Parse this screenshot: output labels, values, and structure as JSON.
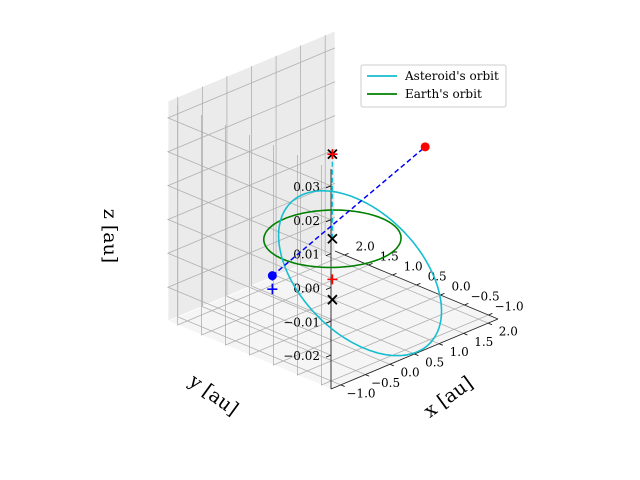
{
  "chart_data": {
    "type": "line",
    "projection": "3d",
    "grid": true,
    "legend_placement": "top-right",
    "xlabel": "x [au]",
    "ylabel": "y [au]",
    "zlabel": "z [au]",
    "xlim": [
      -1.2,
      2.2
    ],
    "ylim": [
      -1.2,
      2.2
    ],
    "zlim": [
      -0.03,
      0.035
    ],
    "xticks": [
      "−1.0",
      "−0.5",
      "0.0",
      "0.5",
      "1.0",
      "1.5",
      "2.0"
    ],
    "yticks": [
      "−1.0",
      "−0.5",
      "0.0",
      "0.5",
      "1.0",
      "1.5",
      "2.0"
    ],
    "zticks": [
      "−0.02",
      "−0.01",
      "0.00",
      "0.01",
      "0.02",
      "0.03"
    ],
    "series": [
      {
        "name": "Asteroid's orbit",
        "color": "#17becf",
        "style": "solid",
        "orbit": {
          "a": 1.25,
          "e": 0.45,
          "inclination_deg": 1.6,
          "node_deg": 120,
          "peri_deg": 60
        }
      },
      {
        "name": "Earth's orbit",
        "color": "#008000",
        "style": "solid",
        "orbit": {
          "a": 1.0,
          "e": 0.0,
          "inclination_deg": 0,
          "node_deg": 0,
          "peri_deg": 0
        }
      }
    ],
    "points": [
      {
        "marker": "dot",
        "color": "#ff0000",
        "x": 1.45,
        "y": -0.45,
        "z": 0.021
      },
      {
        "marker": "dot",
        "color": "#0000ff",
        "x": -0.52,
        "y": 0.72,
        "z": -0.012
      },
      {
        "marker": "x",
        "color": "#000000",
        "x": 0.0,
        "y": 0.0,
        "z": 0.025
      },
      {
        "marker": "x",
        "color": "#000000",
        "x": 0.0,
        "y": 0.0,
        "z": 0.0
      },
      {
        "marker": "x",
        "color": "#000000",
        "x": 0.0,
        "y": 0.0,
        "z": -0.018
      },
      {
        "marker": "plus",
        "color": "#ff0000",
        "x": 0.0,
        "y": 0.0,
        "z": 0.025
      },
      {
        "marker": "plus",
        "color": "#ff0000",
        "x": 0.0,
        "y": 0.0,
        "z": -0.012
      },
      {
        "marker": "plus",
        "color": "#0000ff",
        "x": -0.52,
        "y": 0.72,
        "z": -0.016
      }
    ],
    "dashed_lines": [
      {
        "color": "#0000ff",
        "from": [
          -0.52,
          0.72,
          -0.012
        ],
        "to": [
          1.45,
          -0.45,
          0.021
        ]
      },
      {
        "color": "#0000ff",
        "from": [
          -0.52,
          0.72,
          -0.012
        ],
        "to": [
          -0.52,
          0.72,
          -0.016
        ]
      },
      {
        "color": "#17becf",
        "from": [
          0.0,
          0.0,
          0.0
        ],
        "to": [
          0.0,
          0.0,
          0.025
        ]
      }
    ]
  }
}
